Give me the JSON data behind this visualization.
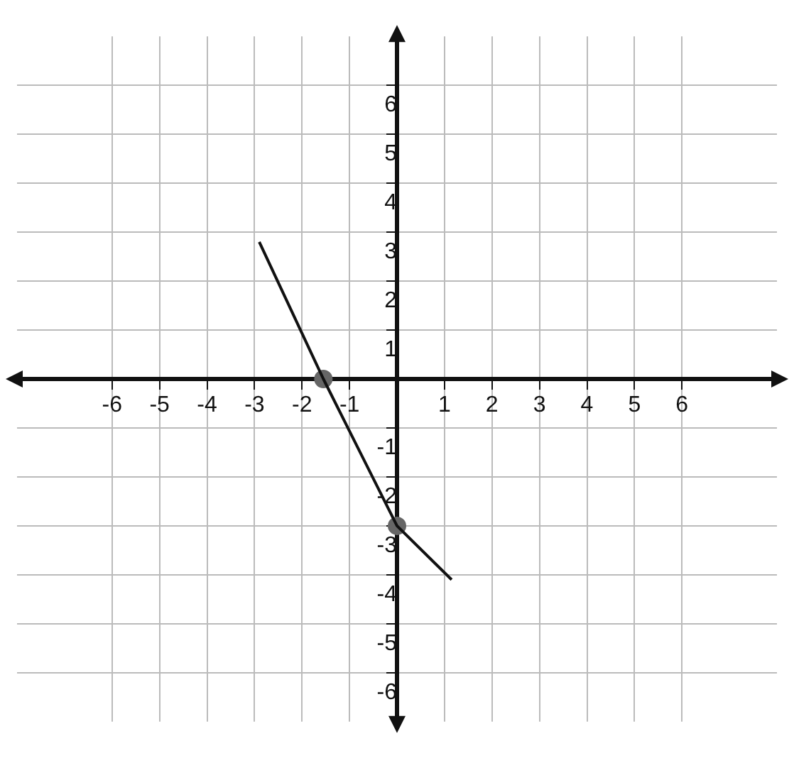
{
  "chart_data": {
    "type": "line",
    "xlim": [
      -8,
      8
    ],
    "ylim": [
      -7,
      7
    ],
    "xticks": [
      -6,
      -5,
      -4,
      -3,
      -2,
      -1,
      {
        "value": 0,
        "label": null
      },
      1,
      2,
      3,
      4,
      5,
      6
    ],
    "yticks": [
      -6,
      -5,
      -4,
      -3,
      -2,
      -1,
      {
        "value": 0,
        "label": null
      },
      1,
      2,
      3,
      4,
      5,
      6
    ],
    "grid": true,
    "series": [
      {
        "color": "#111111",
        "marker": "none",
        "x": [
          -2.9,
          -1.55,
          0,
          1.15
        ],
        "values": [
          2.8,
          0,
          -3,
          -4.1
        ]
      },
      {
        "type": "scatter",
        "color": "#666666",
        "marker": "circle",
        "x": [
          -1.55,
          0
        ],
        "values": [
          0,
          -3
        ]
      }
    ]
  }
}
